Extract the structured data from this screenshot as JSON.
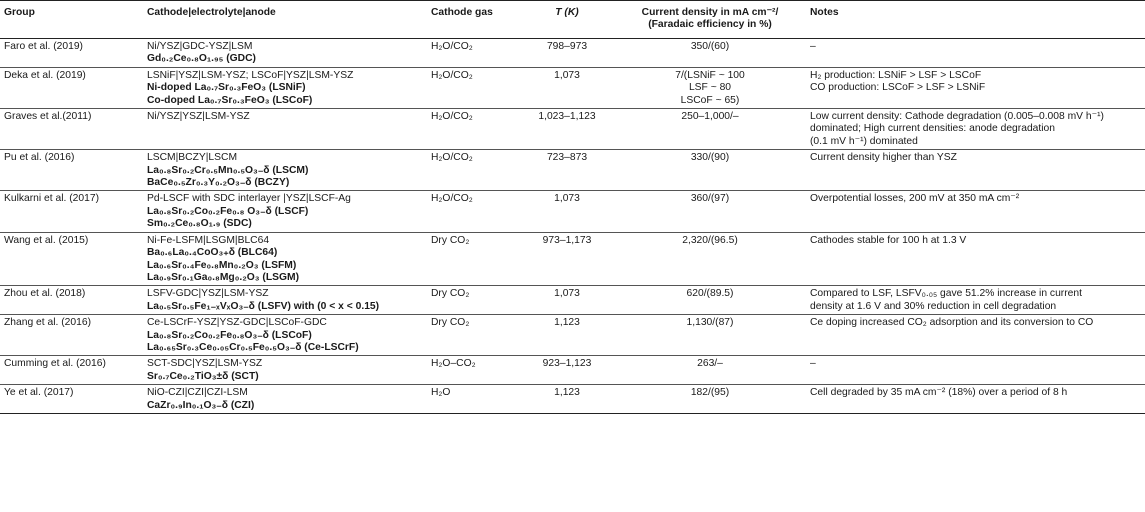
{
  "headers": {
    "group": "Group",
    "cell": "Cathode|electrolyte|anode",
    "gas": "Cathode gas",
    "temp": "T (K)",
    "cd_line1": "Current density in mA cm⁻²/",
    "cd_line2": "(Faradaic efficiency in %)",
    "notes": "Notes"
  },
  "rows": [
    {
      "group": "Faro et al. (2019)",
      "cell": [
        {
          "t": "Ni/YSZ|GDC-YSZ|LSM",
          "b": false
        },
        {
          "t": "Gd₀.₂Ce₀.₈O₁.₉₅ (GDC)",
          "b": true
        }
      ],
      "gas": "H₂O/CO₂",
      "temp": "798–973",
      "cd": [
        "350/(60)"
      ],
      "notes": [
        "–"
      ]
    },
    {
      "group": "Deka et al. (2019)",
      "cell": [
        {
          "t": "LSNiF|YSZ|LSM-YSZ; LSCoF|YSZ|LSM-YSZ",
          "b": false
        },
        {
          "t": "Ni-doped La₀.₇Sr₀.₃FeO₃ (LSNiF)",
          "b": true
        },
        {
          "t": "Co-doped La₀.₇Sr₀.₃FeO₃ (LSCoF)",
          "b": true
        }
      ],
      "gas": "H₂O/CO₂",
      "temp": "1,073",
      "cd": [
        "7/(LSNiF ~ 100",
        "LSF ~ 80",
        "LSCoF ~ 65)"
      ],
      "notes": [
        "H₂ production: LSNiF > LSF > LSCoF",
        "CO production: LSCoF > LSF > LSNiF"
      ]
    },
    {
      "group": "Graves et al.(2011)",
      "cell": [
        {
          "t": "Ni/YSZ|YSZ|LSM-YSZ",
          "b": false
        }
      ],
      "gas": "H₂O/CO₂",
      "temp": "1,023–1,123",
      "cd": [
        "250–1,000/–"
      ],
      "notes": [
        "Low current density: Cathode degradation (0.005–0.008 mV h⁻¹)",
        "dominated; High current densities: anode degradation",
        "(0.1 mV h⁻¹) dominated"
      ]
    },
    {
      "group": "Pu et al. (2016)",
      "cell": [
        {
          "t": "LSCM|BCZY|LSCM",
          "b": false
        },
        {
          "t": "La₀.₈Sr₀.₂Cr₀.₅Mn₀.₅O₃₋δ (LSCM)",
          "b": true
        },
        {
          "t": "BaCe₀.₅Zr₀.₃Y₀.₂O₃₋δ (BCZY)",
          "b": true
        }
      ],
      "gas": "H₂O/CO₂",
      "temp": "723–873",
      "cd": [
        "330/(90)"
      ],
      "notes": [
        "Current density higher than YSZ"
      ]
    },
    {
      "group": "Kulkarni et al. (2017)",
      "cell": [
        {
          "t": "Pd-LSCF with SDC interlayer |YSZ|LSCF-Ag",
          "b": false
        },
        {
          "t": "La₀.₈Sr₀.₂Co₀.₂Fe₀.₈ O₃₋δ (LSCF)",
          "b": true
        },
        {
          "t": "Sm₀.₂Ce₀.₈O₁.₉ (SDC)",
          "b": true
        }
      ],
      "gas": "H₂O/CO₂",
      "temp": "1,073",
      "cd": [
        "360/(97)"
      ],
      "notes": [
        "Overpotential losses, 200 mV at 350 mA cm⁻²"
      ]
    },
    {
      "group": "Wang et al. (2015)",
      "cell": [
        {
          "t": "Ni-Fe-LSFM|LSGM|BLC64",
          "b": false
        },
        {
          "t": "Ba₀.₆La₀.₄CoO₃₊δ (BLC64)",
          "b": true
        },
        {
          "t": "La₀.₆Sr₀.₄Fe₀.₈Mn₀.₂O₃ (LSFM)",
          "b": true
        },
        {
          "t": "La₀.₉Sr₀.₁Ga₀.₈Mg₀.₂O₃ (LSGM)",
          "b": true
        }
      ],
      "gas": "Dry CO₂",
      "temp": "973–1,173",
      "cd": [
        "2,320/(96.5)"
      ],
      "notes": [
        "Cathodes stable for 100 h at 1.3 V"
      ]
    },
    {
      "group": "Zhou et al. (2018)",
      "cell": [
        {
          "t": "LSFV-GDC|YSZ|LSM-YSZ",
          "b": false
        },
        {
          "t": "La₀.₅Sr₀.₅Fe₁₋ₓVₓO₃₋δ (LSFV) with (0 < x < 0.15)",
          "b": true
        }
      ],
      "gas": "Dry CO₂",
      "temp": "1,073",
      "cd": [
        "620/(89.5)"
      ],
      "notes": [
        "Compared to LSF, LSFV₀.₀₅ gave 51.2% increase in current",
        "density at 1.6 V and 30% reduction in cell degradation"
      ]
    },
    {
      "group": "Zhang et al. (2016)",
      "cell": [
        {
          "t": "Ce-LSCrF-YSZ|YSZ-GDC|LSCoF-GDC",
          "b": false
        },
        {
          "t": "La₀.₈Sr₀.₂Co₀.₂Fe₀.₈O₃₋δ (LSCoF)",
          "b": true
        },
        {
          "t": "La₀.₆₅Sr₀.₃Ce₀.₀₅Cr₀.₅Fe₀.₅O₃₋δ (Ce-LSCrF)",
          "b": true
        }
      ],
      "gas": "Dry CO₂",
      "temp": "1,123",
      "cd": [
        "1,130/(87)"
      ],
      "notes": [
        "Ce doping increased CO₂ adsorption and its conversion to CO"
      ]
    },
    {
      "group": "Cumming et al. (2016)",
      "cell": [
        {
          "t": "SCT-SDC|YSZ|LSM-YSZ",
          "b": false
        },
        {
          "t": "Sr₀.₇Ce₀.₂TiO₃±δ (SCT)",
          "b": true
        }
      ],
      "gas": "H₂O–CO₂",
      "temp": "923–1,123",
      "cd": [
        "263/–"
      ],
      "notes": [
        "–"
      ]
    },
    {
      "group": "Ye et al. (2017)",
      "cell": [
        {
          "t": "NiO-CZI|CZI|CZI-LSM",
          "b": false
        },
        {
          "t": "CaZr₀.₉In₀.₁O₃₋δ (CZI)",
          "b": true
        }
      ],
      "gas": "H₂O",
      "temp": "1,123",
      "cd": [
        "182/(95)"
      ],
      "notes": [
        "Cell degraded by 35 mA cm⁻² (18%) over a period of 8 h"
      ]
    }
  ]
}
